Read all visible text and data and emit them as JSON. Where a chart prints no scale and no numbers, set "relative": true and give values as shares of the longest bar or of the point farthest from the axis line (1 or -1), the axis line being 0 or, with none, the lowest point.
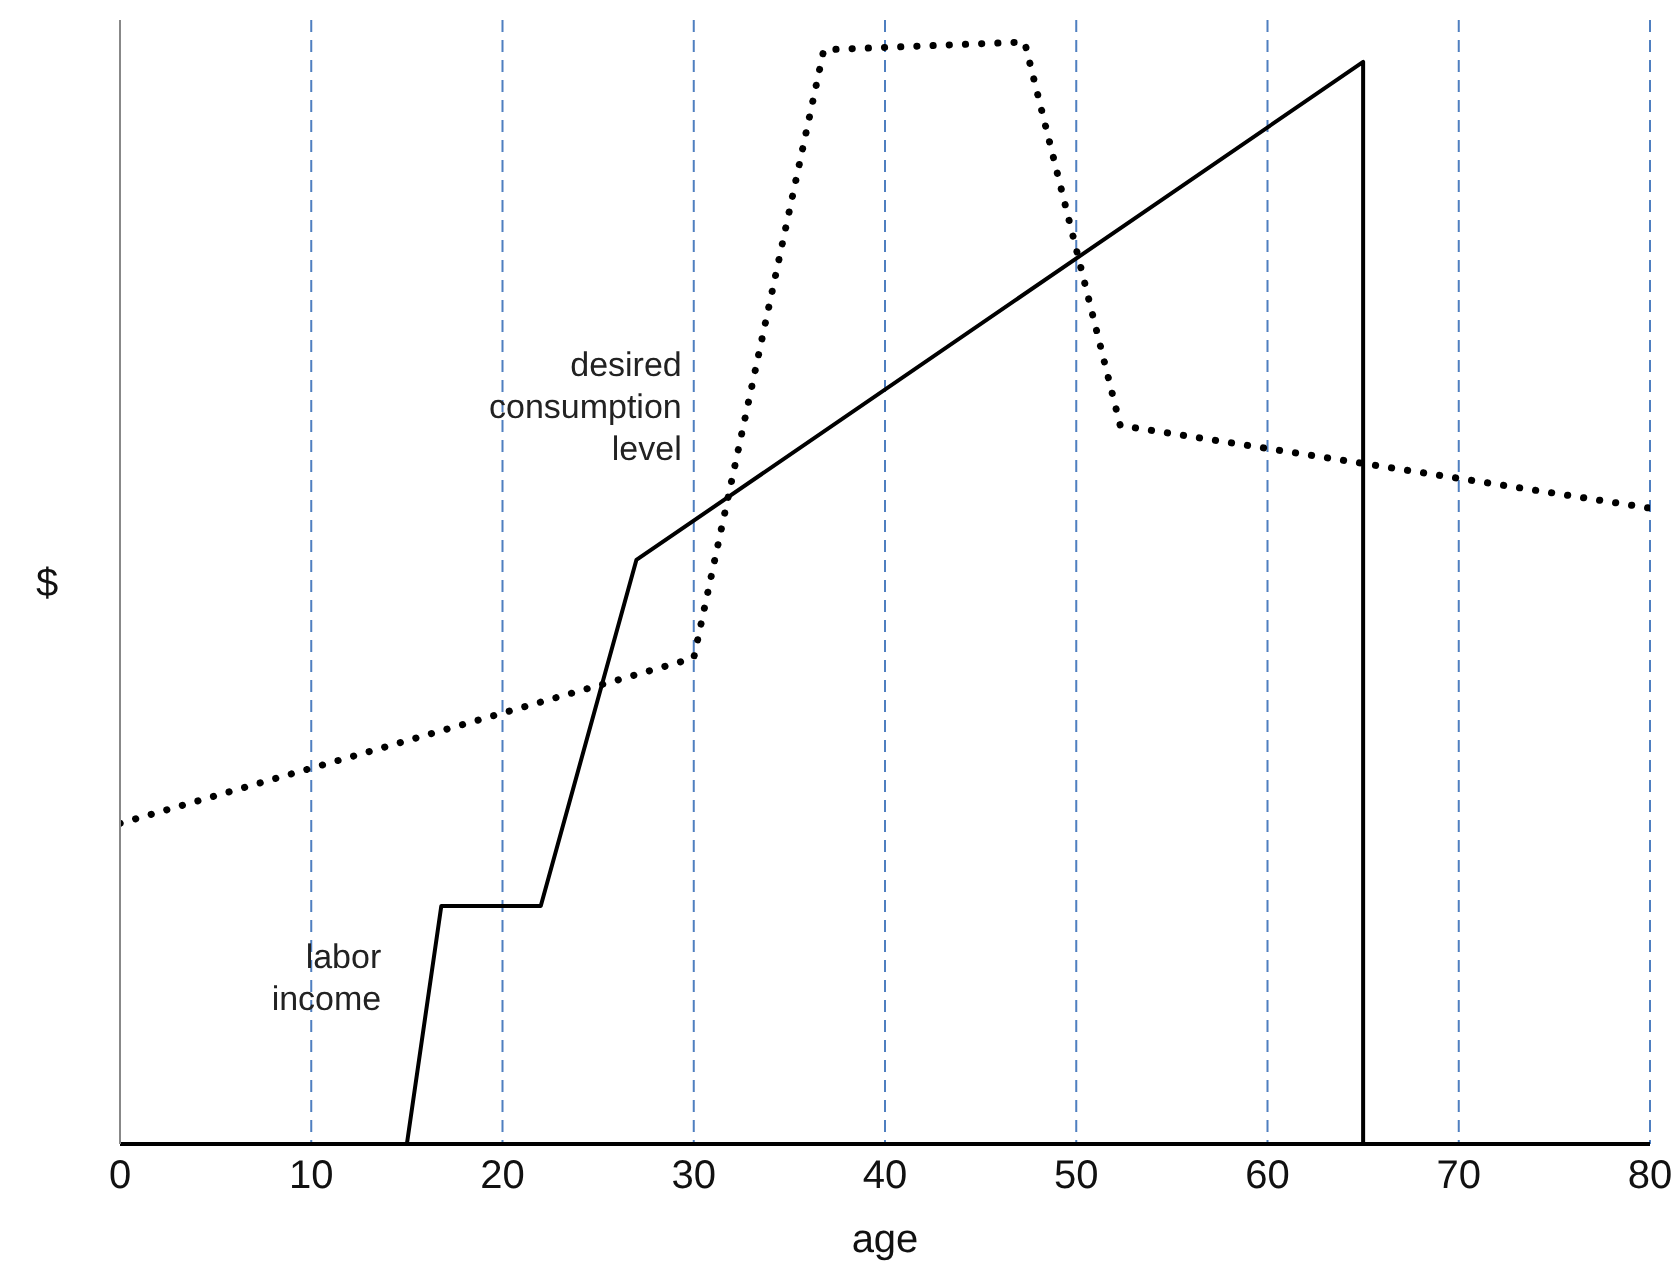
{
  "chart_data": {
    "type": "line",
    "xlabel": "age",
    "ylabel": "$",
    "relative": true,
    "xlim": [
      0,
      80
    ],
    "xticks": [
      0,
      10,
      20,
      30,
      40,
      50,
      60,
      70,
      80
    ],
    "grid": "x",
    "marker": "none",
    "series": [
      {
        "name": "labor income",
        "color": "#000000",
        "line_style": "solid",
        "x": [
          0,
          15,
          16.8,
          22,
          27,
          65,
          65
        ],
        "values": [
          0,
          0,
          0.216,
          0.216,
          0.53,
          0.982,
          0
        ]
      },
      {
        "name": "desired consumption level",
        "color": "#000000",
        "line_style": "dotted",
        "x": [
          0,
          30,
          36.8,
          47.3,
          52.3,
          80
        ],
        "values": [
          0.291,
          0.441,
          0.993,
          1,
          0.652,
          0.577
        ]
      }
    ]
  }
}
